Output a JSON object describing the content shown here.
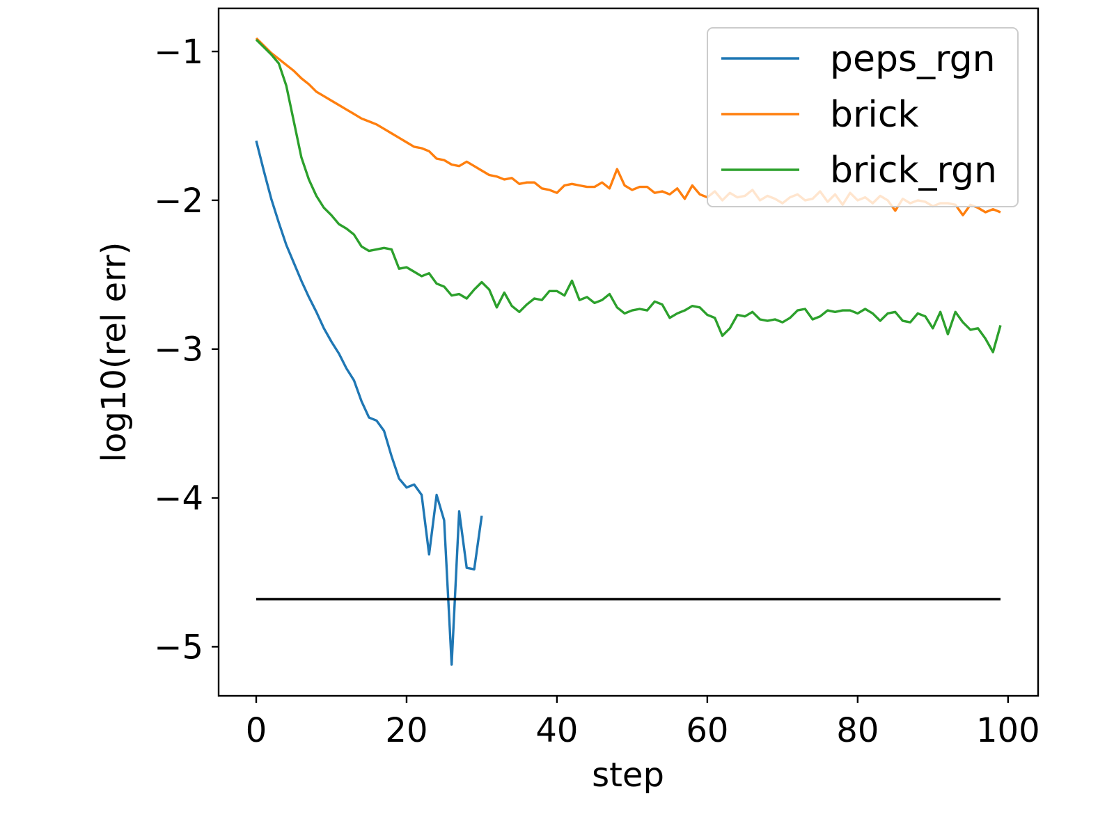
{
  "chart_data": {
    "type": "line",
    "xlabel": "step",
    "ylabel": "log10(rel err)",
    "xlim": [
      -5,
      104
    ],
    "ylim": [
      -5.33,
      -0.71
    ],
    "xticks": [
      0,
      20,
      40,
      60,
      80,
      100
    ],
    "yticks": [
      -1,
      -2,
      -3,
      -4,
      -5
    ],
    "ytick_labels": [
      "−1",
      "−2",
      "−3",
      "−4",
      "−5"
    ],
    "grid": false,
    "legend_position": "top-right",
    "series": [
      {
        "name": "peps_rgn",
        "color": "#1f77b4",
        "x": [
          0,
          1,
          2,
          3,
          4,
          5,
          6,
          7,
          8,
          9,
          10,
          11,
          12,
          13,
          14,
          15,
          16,
          17,
          18,
          19,
          20,
          21,
          22,
          23,
          24,
          25,
          26,
          27,
          28,
          29,
          30
        ],
        "y": [
          -1.6,
          -1.8,
          -1.99,
          -2.15,
          -2.3,
          -2.42,
          -2.54,
          -2.65,
          -2.75,
          -2.86,
          -2.95,
          -3.03,
          -3.13,
          -3.21,
          -3.35,
          -3.46,
          -3.48,
          -3.55,
          -3.72,
          -3.87,
          -3.93,
          -3.91,
          -3.98,
          -4.38,
          -3.98,
          -4.15,
          -5.12,
          -4.09,
          -4.47,
          -4.48,
          -4.12
        ]
      },
      {
        "name": "brick",
        "color": "#ff7f0e",
        "x": [
          0,
          1,
          2,
          3,
          4,
          5,
          6,
          7,
          8,
          9,
          10,
          11,
          12,
          13,
          14,
          15,
          16,
          17,
          18,
          19,
          20,
          21,
          22,
          23,
          24,
          25,
          26,
          27,
          28,
          29,
          30,
          31,
          32,
          33,
          34,
          35,
          36,
          37,
          38,
          39,
          40,
          41,
          42,
          43,
          44,
          45,
          46,
          47,
          48,
          49,
          50,
          51,
          52,
          53,
          54,
          55,
          56,
          57,
          58,
          59,
          60,
          61,
          62,
          63,
          64,
          65,
          66,
          67,
          68,
          69,
          70,
          71,
          72,
          73,
          74,
          75,
          76,
          77,
          78,
          79,
          80,
          81,
          82,
          83,
          84,
          85,
          86,
          87,
          88,
          89,
          90,
          91,
          92,
          93,
          94,
          95,
          96,
          97,
          98,
          99
        ],
        "y": [
          -0.91,
          -0.96,
          -1.01,
          -1.05,
          -1.09,
          -1.13,
          -1.18,
          -1.22,
          -1.27,
          -1.3,
          -1.33,
          -1.36,
          -1.39,
          -1.42,
          -1.45,
          -1.47,
          -1.49,
          -1.52,
          -1.55,
          -1.58,
          -1.61,
          -1.64,
          -1.65,
          -1.67,
          -1.72,
          -1.73,
          -1.76,
          -1.77,
          -1.74,
          -1.77,
          -1.8,
          -1.83,
          -1.84,
          -1.86,
          -1.85,
          -1.89,
          -1.88,
          -1.88,
          -1.92,
          -1.93,
          -1.95,
          -1.9,
          -1.89,
          -1.9,
          -1.91,
          -1.91,
          -1.88,
          -1.92,
          -1.79,
          -1.9,
          -1.93,
          -1.91,
          -1.91,
          -1.95,
          -1.94,
          -1.96,
          -1.92,
          -1.99,
          -1.9,
          -1.96,
          -1.98,
          -1.94,
          -2.0,
          -1.95,
          -1.98,
          -1.97,
          -1.93,
          -2.0,
          -1.97,
          -1.99,
          -2.02,
          -1.98,
          -1.96,
          -2.0,
          -1.99,
          -1.94,
          -2.01,
          -1.96,
          -2.03,
          -1.95,
          -2.0,
          -1.98,
          -2.02,
          -1.97,
          -2.0,
          -2.07,
          -1.99,
          -2.02,
          -2.0,
          -2.01,
          -2.04,
          -2.02,
          -2.02,
          -2.03,
          -2.1,
          -2.03,
          -2.05,
          -2.08,
          -2.06,
          -2.08
        ]
      },
      {
        "name": "brick_rgn",
        "color": "#2ca02c",
        "x": [
          0,
          1,
          2,
          3,
          4,
          5,
          6,
          7,
          8,
          9,
          10,
          11,
          12,
          13,
          14,
          15,
          16,
          17,
          18,
          19,
          20,
          21,
          22,
          23,
          24,
          25,
          26,
          27,
          28,
          29,
          30,
          31,
          32,
          33,
          34,
          35,
          36,
          37,
          38,
          39,
          40,
          41,
          42,
          43,
          44,
          45,
          46,
          47,
          48,
          49,
          50,
          51,
          52,
          53,
          54,
          55,
          56,
          57,
          58,
          59,
          60,
          61,
          62,
          63,
          64,
          65,
          66,
          67,
          68,
          69,
          70,
          71,
          72,
          73,
          74,
          75,
          76,
          77,
          78,
          79,
          80,
          81,
          82,
          83,
          84,
          85,
          86,
          87,
          88,
          89,
          90,
          91,
          92,
          93,
          94,
          95,
          96,
          97,
          98,
          99
        ],
        "y": [
          -0.92,
          -0.97,
          -1.02,
          -1.08,
          -1.23,
          -1.47,
          -1.71,
          -1.86,
          -1.97,
          -2.05,
          -2.1,
          -2.16,
          -2.19,
          -2.23,
          -2.31,
          -2.34,
          -2.33,
          -2.32,
          -2.33,
          -2.46,
          -2.45,
          -2.48,
          -2.51,
          -2.49,
          -2.56,
          -2.58,
          -2.64,
          -2.63,
          -2.66,
          -2.6,
          -2.55,
          -2.6,
          -2.72,
          -2.62,
          -2.71,
          -2.75,
          -2.7,
          -2.66,
          -2.67,
          -2.61,
          -2.61,
          -2.64,
          -2.54,
          -2.67,
          -2.65,
          -2.69,
          -2.67,
          -2.63,
          -2.72,
          -2.76,
          -2.74,
          -2.73,
          -2.74,
          -2.68,
          -2.7,
          -2.79,
          -2.76,
          -2.74,
          -2.71,
          -2.72,
          -2.77,
          -2.79,
          -2.91,
          -2.86,
          -2.77,
          -2.78,
          -2.75,
          -2.8,
          -2.81,
          -2.8,
          -2.82,
          -2.79,
          -2.74,
          -2.73,
          -2.8,
          -2.78,
          -2.74,
          -2.75,
          -2.74,
          -2.74,
          -2.76,
          -2.73,
          -2.76,
          -2.81,
          -2.76,
          -2.75,
          -2.81,
          -2.82,
          -2.76,
          -2.78,
          -2.86,
          -2.75,
          -2.9,
          -2.75,
          -2.82,
          -2.87,
          -2.86,
          -2.93,
          -3.02,
          -2.84
        ]
      },
      {
        "name": "",
        "color": "#000000",
        "x": [
          0,
          99
        ],
        "y": [
          -4.68,
          -4.68
        ]
      }
    ]
  }
}
